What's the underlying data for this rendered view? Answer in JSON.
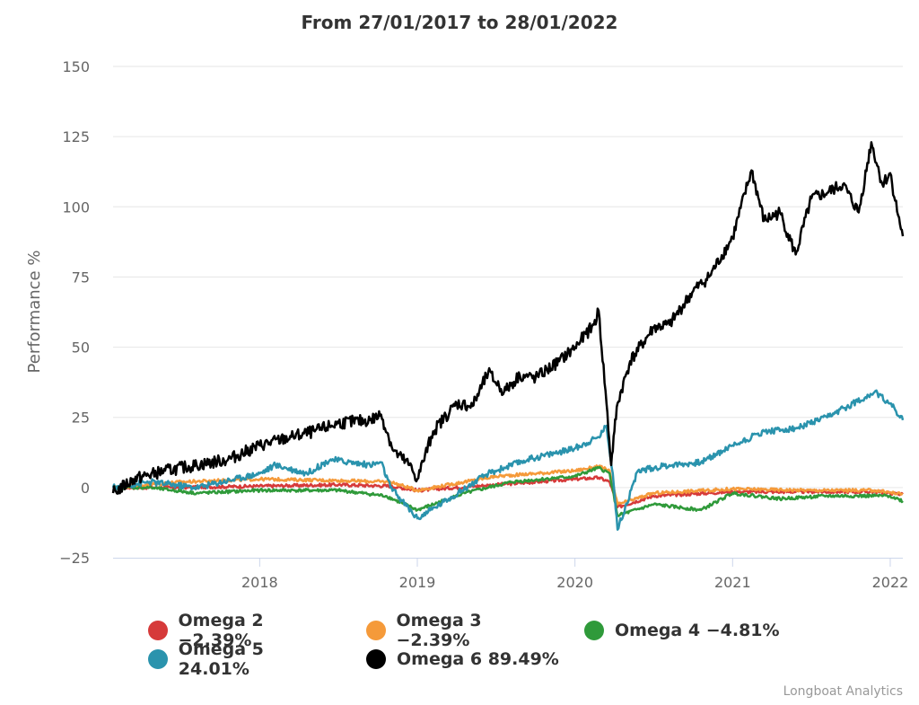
{
  "chart_data": {
    "type": "line",
    "title": "From 27/01/2017 to 28/01/2022",
    "ylabel": "Performance %",
    "xlabel": "",
    "ylim": [
      -25,
      150
    ],
    "xlim": [
      2017.07,
      2022.08
    ],
    "yticks": [
      -25,
      0,
      25,
      50,
      75,
      100,
      125,
      150
    ],
    "ytick_labels": [
      "−25",
      "0",
      "25",
      "50",
      "75",
      "100",
      "125",
      "150"
    ],
    "xticks": [
      2018,
      2019,
      2020,
      2021,
      2022
    ],
    "xtick_labels": [
      "2018",
      "2019",
      "2020",
      "2021",
      "2022"
    ],
    "grid": "horizontal",
    "legend_position": "bottom",
    "series": [
      {
        "name": "Omega 2",
        "label": "Omega 2 −2.39%",
        "color": "#d63a3a",
        "x": [
          2017.07,
          2017.5,
          2018.0,
          2018.5,
          2018.83,
          2019.0,
          2019.5,
          2020.0,
          2020.15,
          2020.22,
          2020.27,
          2020.5,
          2021.0,
          2021.5,
          2021.9,
          2022.08
        ],
        "y": [
          0,
          0,
          0.5,
          1,
          0.5,
          -1,
          1,
          3,
          3.5,
          2,
          -7,
          -3,
          -1.5,
          -1.5,
          -1.5,
          -2.39
        ]
      },
      {
        "name": "Omega 3",
        "label": "Omega 3 −2.39%",
        "color": "#f59a3a",
        "x": [
          2017.07,
          2017.5,
          2018.0,
          2018.5,
          2018.83,
          2019.0,
          2019.5,
          2020.0,
          2020.15,
          2020.22,
          2020.27,
          2020.5,
          2021.0,
          2021.5,
          2021.9,
          2022.08
        ],
        "y": [
          0,
          2,
          3,
          2.5,
          2,
          -1,
          4,
          6,
          7.5,
          6,
          -6,
          -2,
          -0.5,
          -1,
          -1,
          -2.39
        ]
      },
      {
        "name": "Omega 4",
        "label": "Omega 4 −4.81%",
        "color": "#2f9a3a",
        "x": [
          2017.07,
          2017.3,
          2017.6,
          2018.0,
          2018.5,
          2018.8,
          2019.0,
          2019.3,
          2019.6,
          2020.0,
          2020.15,
          2020.22,
          2020.27,
          2020.5,
          2020.8,
          2021.0,
          2021.3,
          2021.6,
          2022.0,
          2022.08
        ],
        "y": [
          0,
          0,
          -2,
          -1,
          -1,
          -3,
          -8,
          -2,
          2,
          4,
          7,
          5,
          -10,
          -6,
          -8,
          -2,
          -4,
          -3,
          -3,
          -4.81
        ]
      },
      {
        "name": "Omega 5",
        "label": "Omega 5 24.01%",
        "color": "#2a93ad",
        "x": [
          2017.07,
          2017.3,
          2017.6,
          2018.0,
          2018.1,
          2018.3,
          2018.45,
          2018.7,
          2018.77,
          2018.83,
          2019.0,
          2019.2,
          2019.45,
          2019.7,
          2020.0,
          2020.15,
          2020.2,
          2020.24,
          2020.27,
          2020.4,
          2020.6,
          2020.8,
          2021.0,
          2021.2,
          2021.4,
          2021.6,
          2021.9,
          2022.0,
          2022.08
        ],
        "y": [
          0,
          2,
          0,
          5,
          8,
          5,
          10,
          8,
          9,
          0,
          -11,
          -4,
          5,
          10,
          14,
          18,
          22,
          5,
          -15,
          6,
          8,
          9,
          15,
          20,
          21,
          25,
          34,
          30,
          24.01
        ]
      },
      {
        "name": "Omega 6",
        "label": "Omega 6 89.49%",
        "color": "#000000",
        "x": [
          2017.07,
          2017.2,
          2017.4,
          2017.6,
          2017.8,
          2018.0,
          2018.2,
          2018.35,
          2018.5,
          2018.7,
          2018.77,
          2018.85,
          2018.95,
          2019.0,
          2019.1,
          2019.25,
          2019.35,
          2019.45,
          2019.55,
          2019.65,
          2019.75,
          2019.9,
          2020.0,
          2020.12,
          2020.15,
          2020.2,
          2020.23,
          2020.25,
          2020.27,
          2020.35,
          2020.5,
          2020.6,
          2020.75,
          2020.85,
          2021.0,
          2021.12,
          2021.2,
          2021.3,
          2021.4,
          2021.5,
          2021.6,
          2021.7,
          2021.8,
          2021.88,
          2021.95,
          2022.0,
          2022.05,
          2022.08
        ],
        "y": [
          -2,
          3,
          6,
          8,
          10,
          15,
          18,
          20,
          23,
          24,
          26,
          13,
          8,
          3,
          20,
          30,
          29,
          41,
          34,
          40,
          39,
          45,
          50,
          58,
          63,
          30,
          8,
          20,
          30,
          45,
          57,
          58,
          70,
          75,
          89,
          113,
          95,
          98,
          83,
          103,
          105,
          108,
          98,
          123,
          108,
          112,
          97,
          89.49
        ]
      }
    ]
  },
  "credit": "Longboat Analytics"
}
